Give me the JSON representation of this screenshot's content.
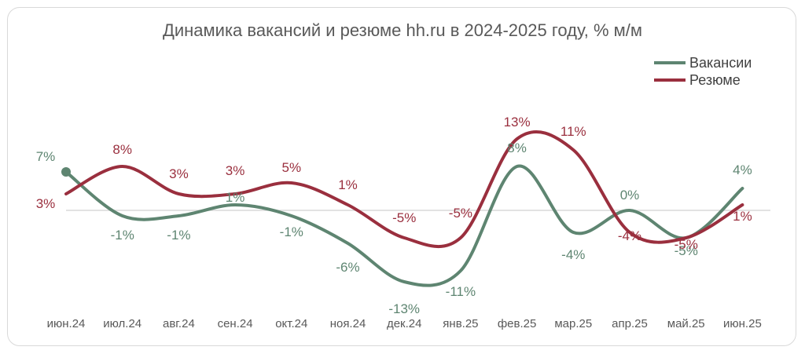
{
  "chart_data": {
    "type": "line",
    "title": "Динамика вакансий и резюме hh.ru в 2024-2025 году, % м/м",
    "categories": [
      "июн.24",
      "июл.24",
      "авг.24",
      "сен.24",
      "окт.24",
      "ноя.24",
      "дек.24",
      "янв.25",
      "фев.25",
      "мар.25",
      "апр.25",
      "май.25",
      "июн.25"
    ],
    "series": [
      {
        "name": "Вакансии",
        "color": "#5e8571",
        "values": [
          7,
          -1,
          -1,
          1,
          -1,
          -6,
          -13,
          -11,
          8,
          -4,
          0,
          -5,
          4
        ],
        "labels": [
          "7%",
          "-1%",
          "-1%",
          "1%",
          "-1%",
          "-6%",
          "-13%",
          "-11%",
          "8%",
          "-4%",
          "0%",
          "-5%",
          "4%"
        ]
      },
      {
        "name": "Резюме",
        "color": "#9a2f3e",
        "values": [
          3,
          8,
          3,
          3,
          5,
          1,
          -5,
          -5,
          13,
          11,
          -4,
          -5,
          1
        ],
        "labels": [
          "3%",
          "8%",
          "3%",
          "3%",
          "5%",
          "1%",
          "-5%",
          "-5%",
          "13%",
          "11%",
          "-4%",
          "-5%",
          "1%"
        ]
      }
    ],
    "ylim": [
      -16,
      16
    ],
    "legend_position": "top-right",
    "grid": false
  }
}
